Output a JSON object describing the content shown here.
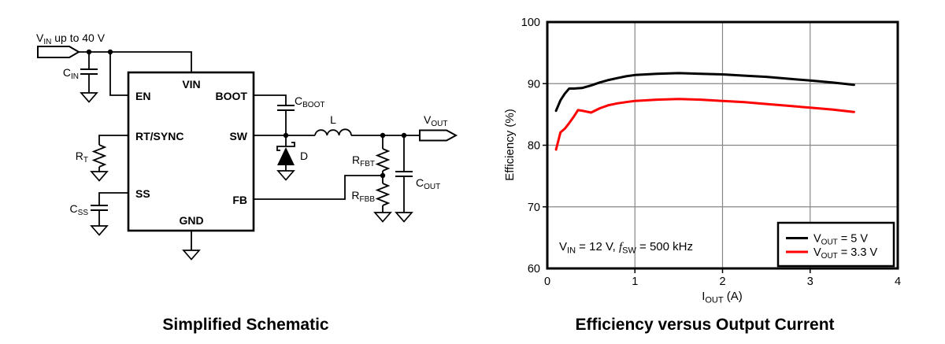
{
  "schematic": {
    "caption": "Simplified Schematic",
    "input_label": {
      "main": "V",
      "sub": "IN",
      "rest": " up to 40 V"
    },
    "ic_pins": {
      "vin": "VIN",
      "en": "EN",
      "rt_sync": "RT/SYNC",
      "ss": "SS",
      "boot": "BOOT",
      "sw": "SW",
      "fb": "FB",
      "gnd": "GND"
    },
    "components": {
      "cin": {
        "main": "C",
        "sub": "IN"
      },
      "rt": {
        "main": "R",
        "sub": "T"
      },
      "css": {
        "main": "C",
        "sub": "SS"
      },
      "cboot": {
        "main": "C",
        "sub": "BOOT"
      },
      "diode": "D",
      "inductor": "L",
      "vout": {
        "main": "V",
        "sub": "OUT"
      },
      "rfbt": {
        "main": "R",
        "sub": "FBT"
      },
      "rfbb": {
        "main": "R",
        "sub": "FBB"
      },
      "cout": {
        "main": "C",
        "sub": "OUT"
      }
    }
  },
  "chart": {
    "xlabel": {
      "main": "I",
      "sub": "OUT",
      "rest": " (A)"
    },
    "annotation": {
      "v_main": "V",
      "v_sub": "IN",
      "v_rest": " = 12 V, ",
      "f_main": "f",
      "f_sub": "SW",
      "f_rest": " = 500 kHz"
    },
    "legend": [
      {
        "main": "V",
        "sub": "OUT",
        "rest": " = 5 V"
      },
      {
        "main": "V",
        "sub": "OUT",
        "rest": " = 3.3 V"
      }
    ]
  },
  "chart_data": {
    "type": "line",
    "title": "Efficiency versus Output Current",
    "xlabel": "IOUT (A)",
    "ylabel": "Efficiency (%)",
    "xlim": [
      0,
      4
    ],
    "ylim": [
      60,
      100
    ],
    "x_ticks": [
      0,
      1,
      2,
      3,
      4
    ],
    "y_ticks": [
      60,
      70,
      80,
      90,
      100
    ],
    "grid": true,
    "legend_position": "lower right",
    "annotation": "VIN = 12 V, fSW = 500 kHz",
    "series": [
      {
        "name": "VOUT = 5 V",
        "color": "#000000",
        "x": [
          0.1,
          0.15,
          0.2,
          0.25,
          0.3,
          0.4,
          0.5,
          0.6,
          0.7,
          0.8,
          0.9,
          1.0,
          1.25,
          1.5,
          1.75,
          2.0,
          2.25,
          2.5,
          2.75,
          3.0,
          3.25,
          3.5
        ],
        "y": [
          85.6,
          87.3,
          88.4,
          89.2,
          89.2,
          89.3,
          89.7,
          90.2,
          90.6,
          90.9,
          91.2,
          91.4,
          91.6,
          91.7,
          91.6,
          91.5,
          91.3,
          91.1,
          90.8,
          90.5,
          90.2,
          89.8
        ]
      },
      {
        "name": "VOUT = 3.3 V",
        "color": "#ff0000",
        "x": [
          0.1,
          0.15,
          0.2,
          0.25,
          0.3,
          0.35,
          0.4,
          0.5,
          0.6,
          0.7,
          0.8,
          0.9,
          1.0,
          1.25,
          1.5,
          1.75,
          2.0,
          2.25,
          2.5,
          2.75,
          3.0,
          3.25,
          3.5
        ],
        "y": [
          79.3,
          82.1,
          82.7,
          83.6,
          84.6,
          85.7,
          85.6,
          85.3,
          86.0,
          86.5,
          86.8,
          87.0,
          87.2,
          87.4,
          87.5,
          87.4,
          87.2,
          87.0,
          86.7,
          86.4,
          86.1,
          85.8,
          85.4
        ]
      }
    ]
  }
}
